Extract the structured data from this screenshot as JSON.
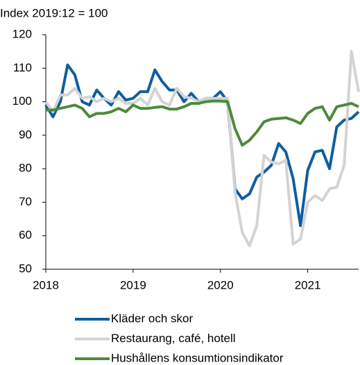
{
  "chart_data": {
    "type": "line",
    "subtitle": "Index 2019:12 = 100",
    "x": [
      2018,
      2018.083,
      2018.167,
      2018.25,
      2018.333,
      2018.417,
      2018.5,
      2018.583,
      2018.667,
      2018.75,
      2018.833,
      2018.917,
      2019,
      2019.083,
      2019.167,
      2019.25,
      2019.333,
      2019.417,
      2019.5,
      2019.583,
      2019.667,
      2019.75,
      2019.833,
      2019.917,
      2020,
      2020.083,
      2020.167,
      2020.25,
      2020.333,
      2020.417,
      2020.5,
      2020.583,
      2020.667,
      2020.75,
      2020.833,
      2020.917,
      2021,
      2021.083,
      2021.167,
      2021.25,
      2021.333,
      2021.417,
      2021.5,
      2021.583
    ],
    "series": [
      {
        "name": "Kläder och skor",
        "color": "#0f5da0",
        "values": [
          99,
          95.5,
          100,
          111,
          108,
          100,
          99,
          103.5,
          101,
          99,
          103,
          100.5,
          101,
          103,
          103,
          109.5,
          106,
          103.5,
          103.5,
          100,
          102.5,
          100,
          101,
          101,
          103,
          100,
          74,
          71,
          72.5,
          77.5,
          79,
          81,
          87.5,
          85,
          77,
          63,
          79.5,
          85,
          85.5,
          80,
          92.5,
          94.5,
          95,
          97
        ]
      },
      {
        "name": "Restaurang, café, hotell",
        "color": "#d3d3d3",
        "values": [
          100,
          97,
          102,
          102,
          104,
          101,
          101.5,
          100,
          101,
          100,
          101,
          99.5,
          99.5,
          101,
          99,
          104,
          100,
          99,
          104,
          101.5,
          101,
          100,
          101,
          101,
          101,
          101,
          73,
          61,
          57,
          63,
          84,
          82,
          81.5,
          82.5,
          57.5,
          59,
          70,
          72,
          70.5,
          74,
          74.5,
          81,
          115,
          103
        ]
      },
      {
        "name": "Hushållens konsumtionsindikator",
        "color": "#4d8a3a",
        "values": [
          97.5,
          97.5,
          98,
          98.5,
          99,
          98,
          95.5,
          96.5,
          96.5,
          97,
          98,
          97,
          99,
          98,
          98,
          98.3,
          98.5,
          97.8,
          97.8,
          98.5,
          99.5,
          99.5,
          100,
          100.2,
          100.2,
          100,
          92,
          87,
          88.5,
          91,
          94,
          94.8,
          95,
          95.2,
          94.5,
          93.5,
          96.5,
          98,
          98.5,
          94.5,
          98.5,
          99,
          99.5,
          98.5
        ]
      }
    ],
    "xlim": [
      2018,
      2021.583
    ],
    "xticks": [
      2018,
      2019,
      2020,
      2021
    ],
    "ylim": [
      50,
      120
    ],
    "yticks": [
      50,
      60,
      70,
      80,
      90,
      100,
      110,
      120
    ],
    "grid": false,
    "legend": "bottom"
  }
}
